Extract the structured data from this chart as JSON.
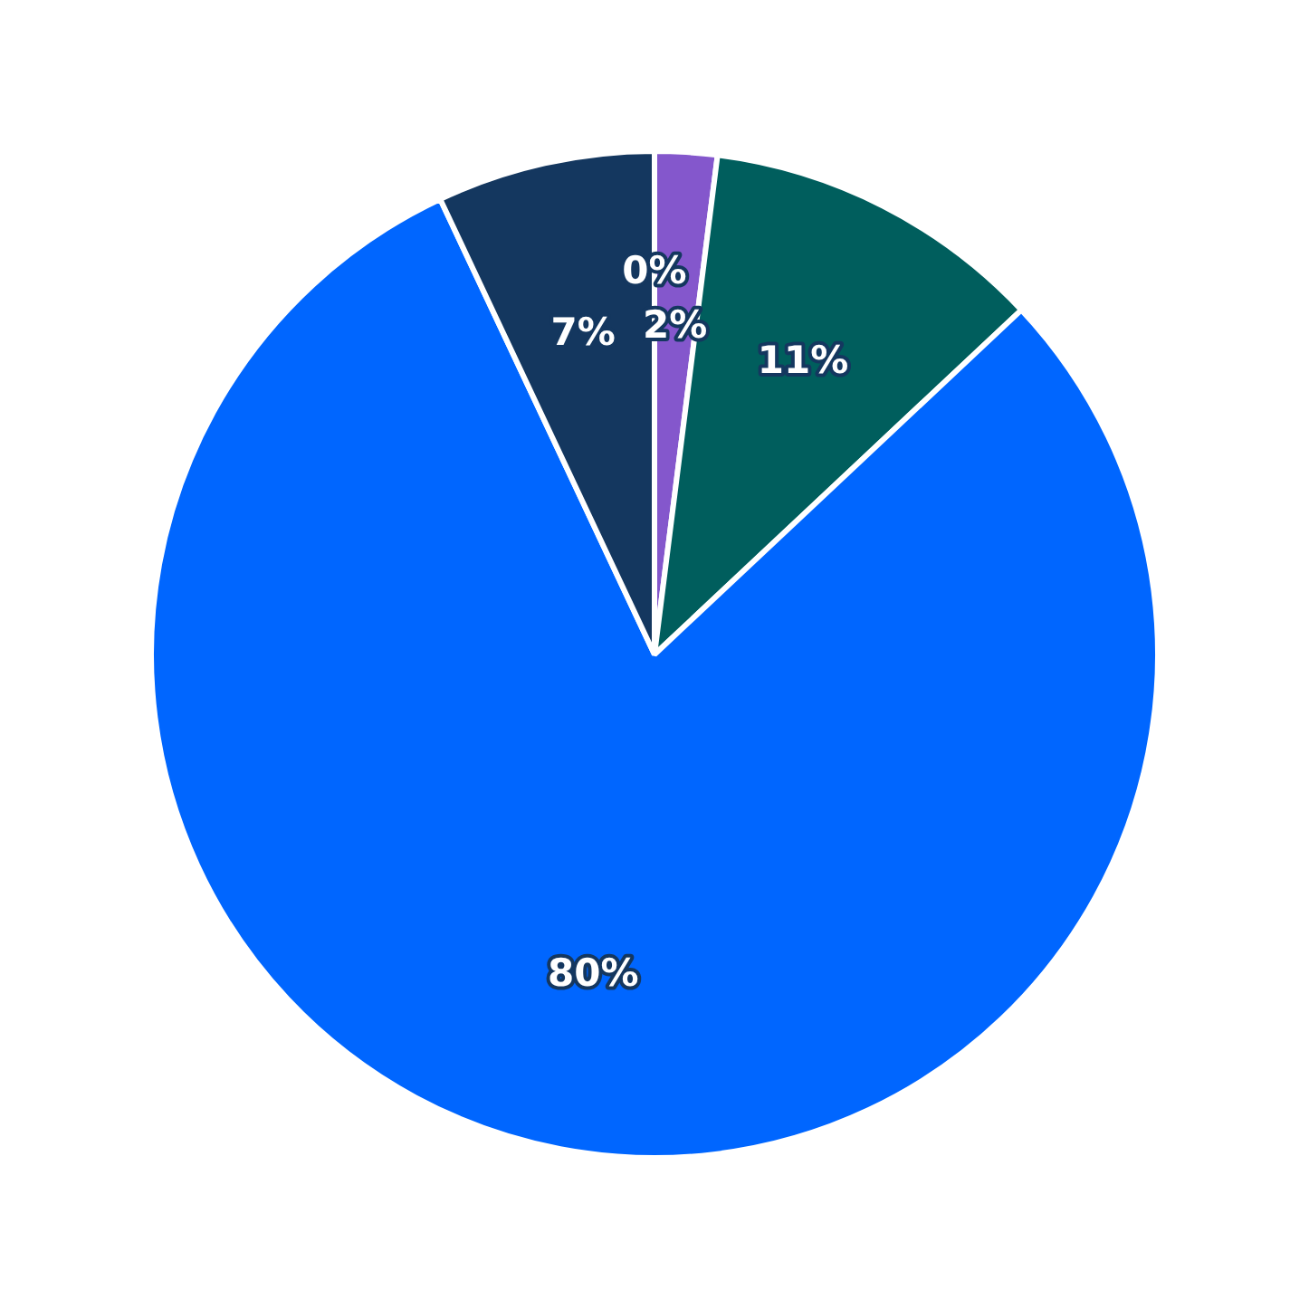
{
  "chart_data": {
    "type": "pie",
    "categories": [
      null,
      null,
      null,
      null,
      null
    ],
    "values": [
      0,
      2,
      11,
      80,
      7
    ],
    "colors": [
      "#ffffff",
      "#8457cc",
      "#005e5d",
      "#0066ff",
      "#14375f"
    ],
    "value_labels": [
      "0%",
      "2%",
      "11%",
      "80%",
      "7%"
    ],
    "legend": false
  }
}
